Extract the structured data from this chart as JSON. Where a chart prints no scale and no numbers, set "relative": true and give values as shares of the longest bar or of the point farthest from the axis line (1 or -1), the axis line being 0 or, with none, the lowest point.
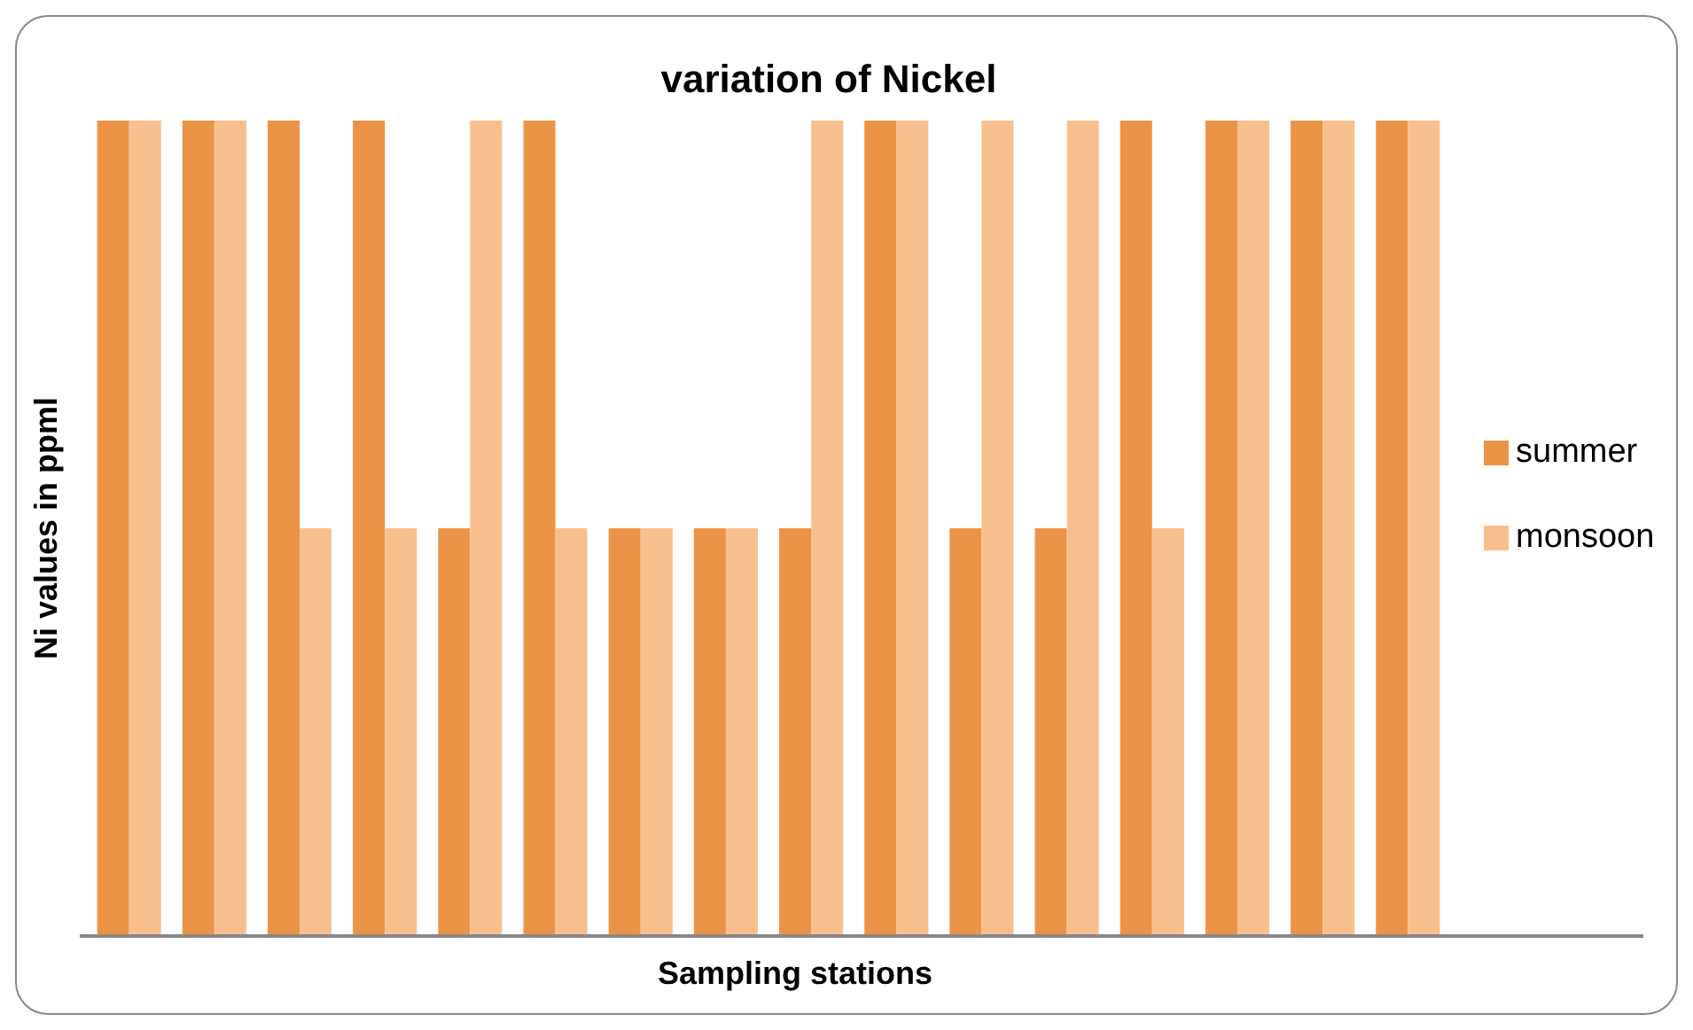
{
  "chart_data": {
    "type": "bar",
    "title": "variation of Nickel",
    "xlabel": "Sampling stations",
    "ylabel": "Ni values in ppml",
    "relative": true,
    "legend": "right",
    "categories": [
      null,
      null,
      null,
      null,
      null,
      null,
      null,
      null,
      null,
      null,
      null,
      null,
      null,
      null,
      null,
      null
    ],
    "series": [
      {
        "name": "summer",
        "color": "#eb9447",
        "values": [
          1,
          1,
          1,
          1,
          0.5,
          1,
          0.5,
          0.5,
          0.5,
          1,
          0.5,
          0.5,
          1,
          1,
          1,
          1
        ]
      },
      {
        "name": "monsoon",
        "color": "#f9c08f",
        "values": [
          1,
          1,
          0.5,
          0.5,
          1,
          0.5,
          0.5,
          0.5,
          1,
          1,
          1,
          1,
          0.5,
          1,
          1,
          1
        ]
      }
    ]
  }
}
